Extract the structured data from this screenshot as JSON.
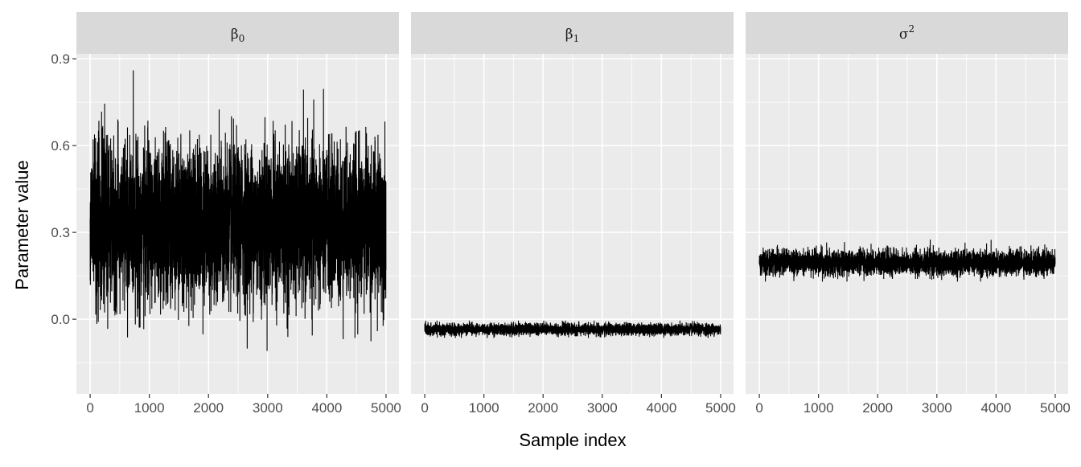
{
  "chart_data": {
    "type": "line",
    "title": "",
    "xlabel": "Sample index",
    "ylabel": "Parameter value",
    "xlim": [
      -232,
      5218
    ],
    "ylim": [
      -0.258,
      0.917
    ],
    "x_ticks": [
      "0",
      "1000",
      "2000",
      "3000",
      "4000",
      "5000"
    ],
    "x_tick_values": [
      0,
      1000,
      2000,
      3000,
      4000,
      5000
    ],
    "y_ticks": [
      "0.0",
      "0.3",
      "0.6",
      "0.9"
    ],
    "y_tick_values": [
      0.0,
      0.3,
      0.6,
      0.9
    ],
    "grid": true,
    "n_samples": 5000,
    "facets": [
      {
        "label": "β",
        "sub": "0",
        "sup": "",
        "mean": 0.33,
        "sd": 0.13,
        "min": -0.21,
        "max": 0.86,
        "seed": 11
      },
      {
        "label": "β",
        "sub": "1",
        "sup": "",
        "mean": -0.035,
        "sd": 0.01,
        "min": -0.065,
        "max": -0.005,
        "seed": 23
      },
      {
        "label": "σ",
        "sub": "",
        "sup": "2",
        "mean": 0.195,
        "sd": 0.021,
        "min": 0.13,
        "max": 0.32,
        "seed": 37
      }
    ]
  }
}
